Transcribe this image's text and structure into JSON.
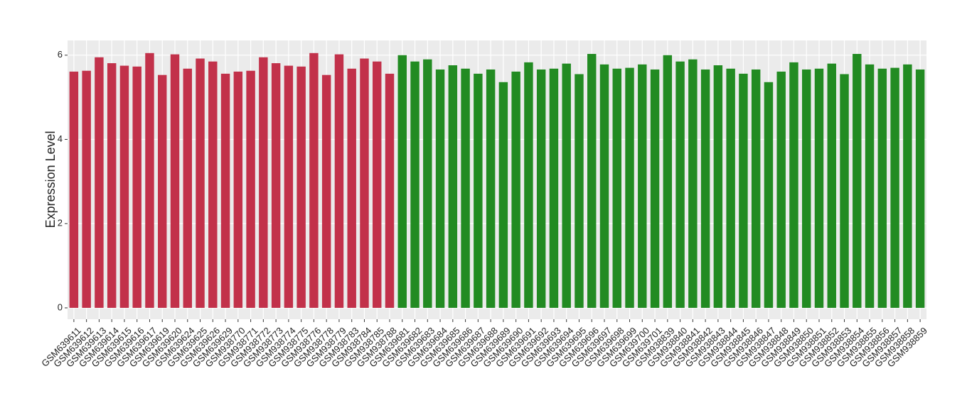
{
  "chart_data": {
    "type": "bar",
    "y_label": "Expression Level",
    "categories": [
      "GSM639611",
      "GSM639612",
      "GSM639613",
      "GSM639614",
      "GSM639615",
      "GSM639616",
      "GSM639617",
      "GSM639619",
      "GSM639620",
      "GSM639624",
      "GSM639625",
      "GSM639626",
      "GSM639629",
      "GSM938770",
      "GSM938771",
      "GSM938772",
      "GSM938773",
      "GSM938774",
      "GSM938775",
      "GSM938776",
      "GSM938778",
      "GSM938779",
      "GSM938783",
      "GSM938784",
      "GSM938785",
      "GSM938788",
      "GSM639681",
      "GSM639682",
      "GSM639683",
      "GSM639684",
      "GSM639685",
      "GSM639686",
      "GSM639687",
      "GSM639688",
      "GSM639689",
      "GSM639690",
      "GSM639691",
      "GSM639692",
      "GSM639693",
      "GSM639694",
      "GSM639695",
      "GSM639696",
      "GSM639697",
      "GSM639698",
      "GSM639699",
      "GSM639700",
      "GSM639701",
      "GSM938839",
      "GSM938840",
      "GSM938841",
      "GSM938842",
      "GSM938843",
      "GSM938844",
      "GSM938845",
      "GSM938846",
      "GSM938847",
      "GSM938848",
      "GSM938849",
      "GSM938850",
      "GSM938851",
      "GSM938852",
      "GSM938853",
      "GSM938854",
      "GSM938855",
      "GSM938856",
      "GSM938857",
      "GSM938858",
      "GSM938859"
    ],
    "values": [
      5.61,
      5.63,
      5.95,
      5.81,
      5.75,
      5.73,
      6.05,
      5.53,
      6.02,
      5.68,
      5.92,
      5.85,
      5.56,
      5.61,
      5.63,
      5.95,
      5.81,
      5.75,
      5.73,
      6.05,
      5.53,
      6.02,
      5.68,
      5.92,
      5.85,
      5.56,
      6.0,
      5.85,
      5.9,
      5.66,
      5.76,
      5.68,
      5.56,
      5.66,
      5.36,
      5.61,
      5.83,
      5.66,
      5.68,
      5.8,
      5.55,
      6.03,
      5.78,
      5.68,
      5.7,
      5.78,
      5.66,
      6.0,
      5.85,
      5.9,
      5.66,
      5.76,
      5.68,
      5.56,
      5.66,
      5.36,
      5.61,
      5.83,
      5.66,
      5.68,
      5.8,
      5.55,
      6.03,
      5.78,
      5.68,
      5.7,
      5.78,
      5.66
    ],
    "colors": [
      "#c2314a",
      "#c2314a",
      "#c2314a",
      "#c2314a",
      "#c2314a",
      "#c2314a",
      "#c2314a",
      "#c2314a",
      "#c2314a",
      "#c2314a",
      "#c2314a",
      "#c2314a",
      "#c2314a",
      "#c2314a",
      "#c2314a",
      "#c2314a",
      "#c2314a",
      "#c2314a",
      "#c2314a",
      "#c2314a",
      "#c2314a",
      "#c2314a",
      "#c2314a",
      "#c2314a",
      "#c2314a",
      "#c2314a",
      "#228b22",
      "#228b22",
      "#228b22",
      "#228b22",
      "#228b22",
      "#228b22",
      "#228b22",
      "#228b22",
      "#228b22",
      "#228b22",
      "#228b22",
      "#228b22",
      "#228b22",
      "#228b22",
      "#228b22",
      "#228b22",
      "#228b22",
      "#228b22",
      "#228b22",
      "#228b22",
      "#228b22",
      "#228b22",
      "#228b22",
      "#228b22",
      "#228b22",
      "#228b22",
      "#228b22",
      "#228b22",
      "#228b22",
      "#228b22",
      "#228b22",
      "#228b22",
      "#228b22",
      "#228b22",
      "#228b22",
      "#228b22",
      "#228b22",
      "#228b22",
      "#228b22",
      "#228b22",
      "#228b22",
      "#228b22"
    ],
    "ylim": [
      -0.27,
      6.35
    ],
    "yticks": [
      0,
      2,
      4,
      6
    ],
    "grid": true
  }
}
